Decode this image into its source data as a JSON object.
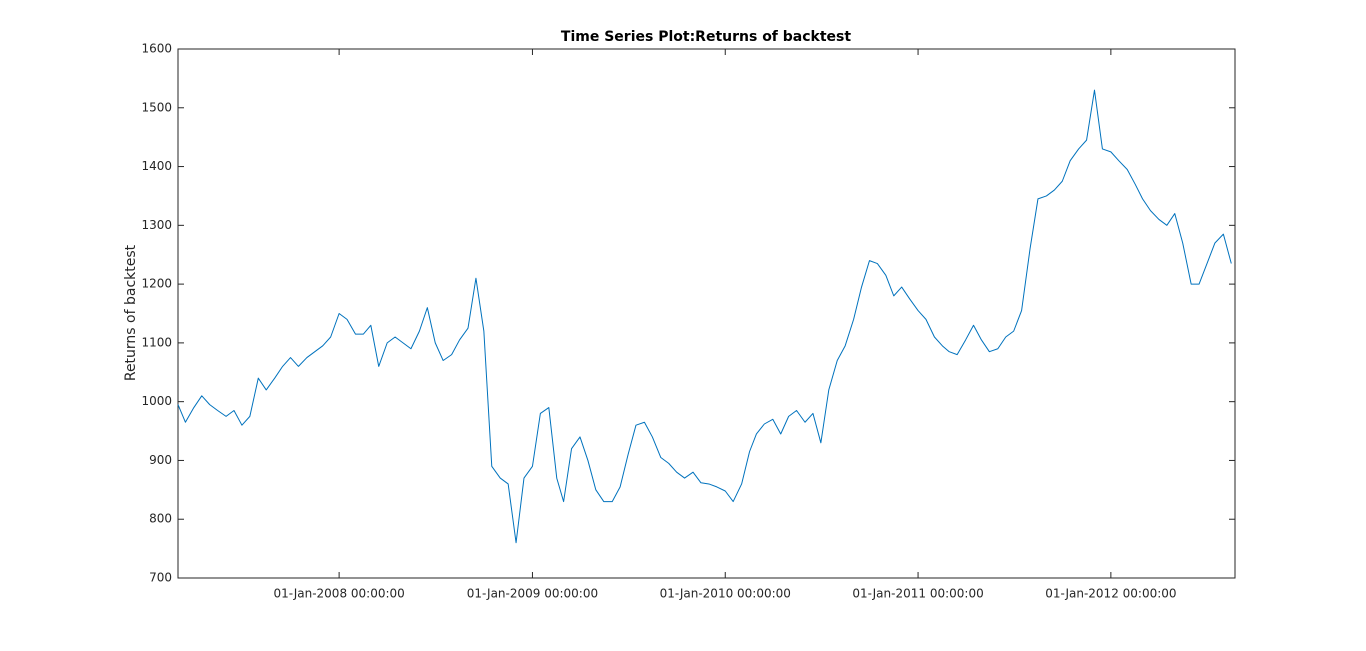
{
  "chart_data": {
    "type": "line",
    "title": "Time Series Plot:Returns of backtest",
    "y_label": "Returns of backtest",
    "xlim": [
      "2007-03-02",
      "2012-08-23"
    ],
    "xticks": [
      {
        "value": "2008-01-01",
        "label": "01-Jan-2008 00:00:00"
      },
      {
        "value": "2009-01-01",
        "label": "01-Jan-2009 00:00:00"
      },
      {
        "value": "2010-01-01",
        "label": "01-Jan-2010 00:00:00"
      },
      {
        "value": "2011-01-01",
        "label": "01-Jan-2011 00:00:00"
      },
      {
        "value": "2012-01-01",
        "label": "01-Jan-2012 00:00:00"
      }
    ],
    "ylim": [
      700,
      1600
    ],
    "yticks": [
      700,
      800,
      900,
      1000,
      1100,
      1200,
      1300,
      1400,
      1500,
      1600
    ],
    "grid": false,
    "x": [
      "2007-03-02",
      "2007-03-16",
      "2007-04-01",
      "2007-04-16",
      "2007-05-01",
      "2007-05-16",
      "2007-06-01",
      "2007-06-16",
      "2007-07-01",
      "2007-07-16",
      "2007-08-01",
      "2007-08-16",
      "2007-09-01",
      "2007-09-16",
      "2007-10-01",
      "2007-10-16",
      "2007-11-01",
      "2007-11-16",
      "2007-12-01",
      "2007-12-16",
      "2008-01-01",
      "2008-01-16",
      "2008-02-01",
      "2008-02-16",
      "2008-03-01",
      "2008-03-16",
      "2008-04-01",
      "2008-04-16",
      "2008-05-01",
      "2008-05-16",
      "2008-06-01",
      "2008-06-16",
      "2008-07-01",
      "2008-07-16",
      "2008-08-01",
      "2008-08-16",
      "2008-09-01",
      "2008-09-16",
      "2008-10-01",
      "2008-10-16",
      "2008-11-01",
      "2008-11-16",
      "2008-12-01",
      "2008-12-16",
      "2009-01-01",
      "2009-01-16",
      "2009-02-01",
      "2009-02-16",
      "2009-03-01",
      "2009-03-16",
      "2009-04-01",
      "2009-04-16",
      "2009-05-01",
      "2009-05-16",
      "2009-06-01",
      "2009-06-16",
      "2009-07-01",
      "2009-07-16",
      "2009-08-01",
      "2009-08-16",
      "2009-09-01",
      "2009-09-16",
      "2009-10-01",
      "2009-10-16",
      "2009-11-01",
      "2009-11-16",
      "2009-12-01",
      "2009-12-16",
      "2010-01-01",
      "2010-01-16",
      "2010-02-01",
      "2010-02-16",
      "2010-03-01",
      "2010-03-16",
      "2010-04-01",
      "2010-04-16",
      "2010-05-01",
      "2010-05-16",
      "2010-06-01",
      "2010-06-16",
      "2010-07-01",
      "2010-07-16",
      "2010-08-01",
      "2010-08-16",
      "2010-09-01",
      "2010-09-16",
      "2010-10-01",
      "2010-10-16",
      "2010-11-01",
      "2010-11-16",
      "2010-12-01",
      "2010-12-16",
      "2011-01-01",
      "2011-01-16",
      "2011-02-01",
      "2011-02-16",
      "2011-03-01",
      "2011-03-16",
      "2011-04-01",
      "2011-04-16",
      "2011-05-01",
      "2011-05-16",
      "2011-06-01",
      "2011-06-16",
      "2011-07-01",
      "2011-07-16",
      "2011-08-01",
      "2011-08-16",
      "2011-09-01",
      "2011-09-16",
      "2011-10-01",
      "2011-10-16",
      "2011-11-01",
      "2011-11-16",
      "2011-12-01",
      "2011-12-16",
      "2012-01-01",
      "2012-01-16",
      "2012-02-01",
      "2012-02-16",
      "2012-03-01",
      "2012-03-16",
      "2012-04-01",
      "2012-04-16",
      "2012-05-01",
      "2012-05-16",
      "2012-06-01",
      "2012-06-16",
      "2012-07-01",
      "2012-07-16",
      "2012-08-01",
      "2012-08-16"
    ],
    "series": [
      {
        "name": "Returns of backtest",
        "color": "#0072bd",
        "values": [
          995,
          965,
          990,
          1010,
          995,
          985,
          975,
          985,
          960,
          975,
          1040,
          1020,
          1040,
          1060,
          1075,
          1060,
          1075,
          1085,
          1095,
          1110,
          1150,
          1140,
          1115,
          1115,
          1130,
          1060,
          1100,
          1110,
          1100,
          1090,
          1120,
          1160,
          1100,
          1070,
          1080,
          1105,
          1125,
          1210,
          1120,
          890,
          870,
          860,
          760,
          870,
          890,
          980,
          990,
          870,
          830,
          920,
          940,
          900,
          850,
          830,
          830,
          855,
          910,
          960,
          965,
          940,
          905,
          895,
          880,
          870,
          880,
          862,
          860,
          855,
          848,
          830,
          860,
          915,
          945,
          962,
          970,
          945,
          975,
          985,
          965,
          980,
          930,
          1020,
          1070,
          1095,
          1140,
          1195,
          1240,
          1235,
          1215,
          1180,
          1195,
          1175,
          1155,
          1140,
          1110,
          1095,
          1085,
          1080,
          1105,
          1130,
          1105,
          1085,
          1090,
          1110,
          1120,
          1155,
          1260,
          1345,
          1350,
          1360,
          1375,
          1410,
          1430,
          1445,
          1530,
          1430,
          1425,
          1410,
          1395,
          1370,
          1345,
          1325,
          1310,
          1300,
          1320,
          1270,
          1200,
          1200,
          1235,
          1270,
          1285,
          1235
        ]
      }
    ]
  }
}
